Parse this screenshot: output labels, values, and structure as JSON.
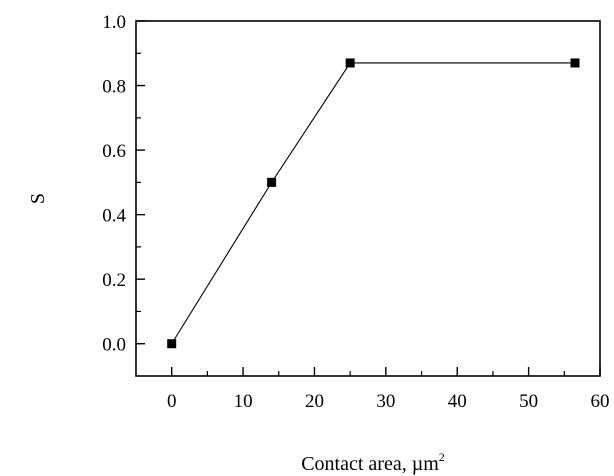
{
  "chart_data": {
    "type": "line",
    "title": "",
    "xlabel": "Contact area, µm",
    "xlabel_superscript": "2",
    "ylabel": "S",
    "xlim": [
      -5,
      60
    ],
    "ylim": [
      -0.1,
      1.0
    ],
    "xticks": [
      0,
      10,
      20,
      30,
      40,
      50,
      60
    ],
    "yticks": [
      0.0,
      0.2,
      0.4,
      0.6,
      0.8,
      1.0
    ],
    "xtick_labels": [
      "0",
      "10",
      "20",
      "30",
      "40",
      "50",
      "60"
    ],
    "ytick_labels": [
      "0.0",
      "0.2",
      "0.4",
      "0.6",
      "0.8",
      "1.0"
    ],
    "grid": false,
    "legend": "none",
    "marker": "square",
    "series": [
      {
        "x": [
          0,
          14,
          25,
          56.5
        ],
        "y": [
          0.0,
          0.5,
          0.87,
          0.87
        ],
        "color": "#000000"
      }
    ]
  }
}
